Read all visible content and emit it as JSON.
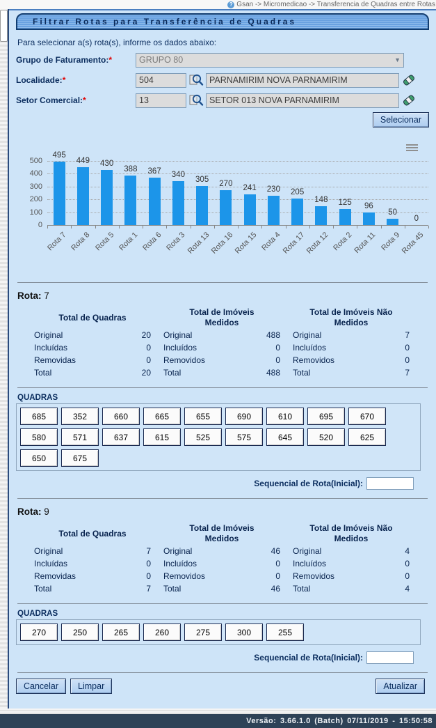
{
  "breadcrumb": {
    "text": "Gsan -> Micromedicao -> Transferencia de Quadras entre Rotas"
  },
  "page": {
    "title": "Filtrar Rotas para Transferência de Quadras",
    "instruction": "Para selecionar a(s) rota(s), informe os dados abaixo:"
  },
  "form": {
    "required_marker": "*",
    "grupo_label": "Grupo de Faturamento:",
    "grupo_value": "GRUPO 80",
    "localidade_label": "Localidade:",
    "localidade_code": "504",
    "localidade_name": "PARNAMIRIM NOVA PARNAMIRIM",
    "setor_label": "Setor Comercial:",
    "setor_code": "13",
    "setor_name": "SETOR 013 NOVA PARNAMIRIM",
    "selecionar_label": "Selecionar"
  },
  "chart_data": {
    "type": "bar",
    "categories": [
      "Rota 7",
      "Rota 8",
      "Rota 5",
      "Rota 1",
      "Rota 6",
      "Rota 3",
      "Rota 13",
      "Rota 16",
      "Rota 15",
      "Rota 4",
      "Rota 17",
      "Rota 12",
      "Rota 2",
      "Rota 11",
      "Rota 9",
      "Rota 45"
    ],
    "values": [
      495,
      449,
      430,
      388,
      367,
      340,
      305,
      270,
      241,
      230,
      205,
      148,
      125,
      96,
      50,
      0
    ],
    "title": "",
    "xlabel": "",
    "ylabel": "",
    "ylim": [
      0,
      500
    ],
    "yticks": [
      0,
      100,
      200,
      300,
      400,
      500
    ],
    "grid": true,
    "legend": "none",
    "bar_color": "#1c95e9",
    "data_labels": true
  },
  "sections": [
    {
      "rota_label": "Rota:",
      "rota_value": "7",
      "stats": [
        {
          "header": "Total de Quadras",
          "rows": [
            {
              "label": "Original",
              "value": "20"
            },
            {
              "label": "Incluídas",
              "value": "0"
            },
            {
              "label": "Removidas",
              "value": "0"
            },
            {
              "label": "Total",
              "value": "20"
            }
          ]
        },
        {
          "header": "Total de Imóveis Medidos",
          "rows": [
            {
              "label": "Original",
              "value": "488"
            },
            {
              "label": "Incluídos",
              "value": "0"
            },
            {
              "label": "Removidos",
              "value": "0"
            },
            {
              "label": "Total",
              "value": "488"
            }
          ]
        },
        {
          "header": "Total de Imóveis Não Medidos",
          "rows": [
            {
              "label": "Original",
              "value": "7"
            },
            {
              "label": "Incluídos",
              "value": "0"
            },
            {
              "label": "Removidos",
              "value": "0"
            },
            {
              "label": "Total",
              "value": "7"
            }
          ]
        }
      ],
      "quadras_label": "QUADRAS",
      "quadras": [
        "685",
        "352",
        "660",
        "665",
        "655",
        "690",
        "610",
        "695",
        "670",
        "580",
        "571",
        "637",
        "615",
        "525",
        "575",
        "645",
        "520",
        "625",
        "650",
        "675"
      ],
      "sequencial_label": "Sequencial de Rota(Inicial):",
      "sequencial_value": ""
    },
    {
      "rota_label": "Rota:",
      "rota_value": "9",
      "stats": [
        {
          "header": "Total de Quadras",
          "rows": [
            {
              "label": "Original",
              "value": "7"
            },
            {
              "label": "Incluídas",
              "value": "0"
            },
            {
              "label": "Removidas",
              "value": "0"
            },
            {
              "label": "Total",
              "value": "7"
            }
          ]
        },
        {
          "header": "Total de Imóveis Medidos",
          "rows": [
            {
              "label": "Original",
              "value": "46"
            },
            {
              "label": "Incluídos",
              "value": "0"
            },
            {
              "label": "Removidos",
              "value": "0"
            },
            {
              "label": "Total",
              "value": "46"
            }
          ]
        },
        {
          "header": "Total de Imóveis Não Medidos",
          "rows": [
            {
              "label": "Original",
              "value": "4"
            },
            {
              "label": "Incluídos",
              "value": "0"
            },
            {
              "label": "Removidos",
              "value": "0"
            },
            {
              "label": "Total",
              "value": "4"
            }
          ]
        }
      ],
      "quadras_label": "QUADRAS",
      "quadras": [
        "270",
        "250",
        "265",
        "260",
        "275",
        "300",
        "255"
      ],
      "sequencial_label": "Sequencial de Rota(Inicial):",
      "sequencial_value": ""
    }
  ],
  "footer_buttons": {
    "cancelar": "Cancelar",
    "limpar": "Limpar",
    "atualizar": "Atualizar"
  },
  "statusbar": {
    "text": "Versão: 3.66.1.0 (Batch) 07/11/2019 - 15:50:58"
  }
}
